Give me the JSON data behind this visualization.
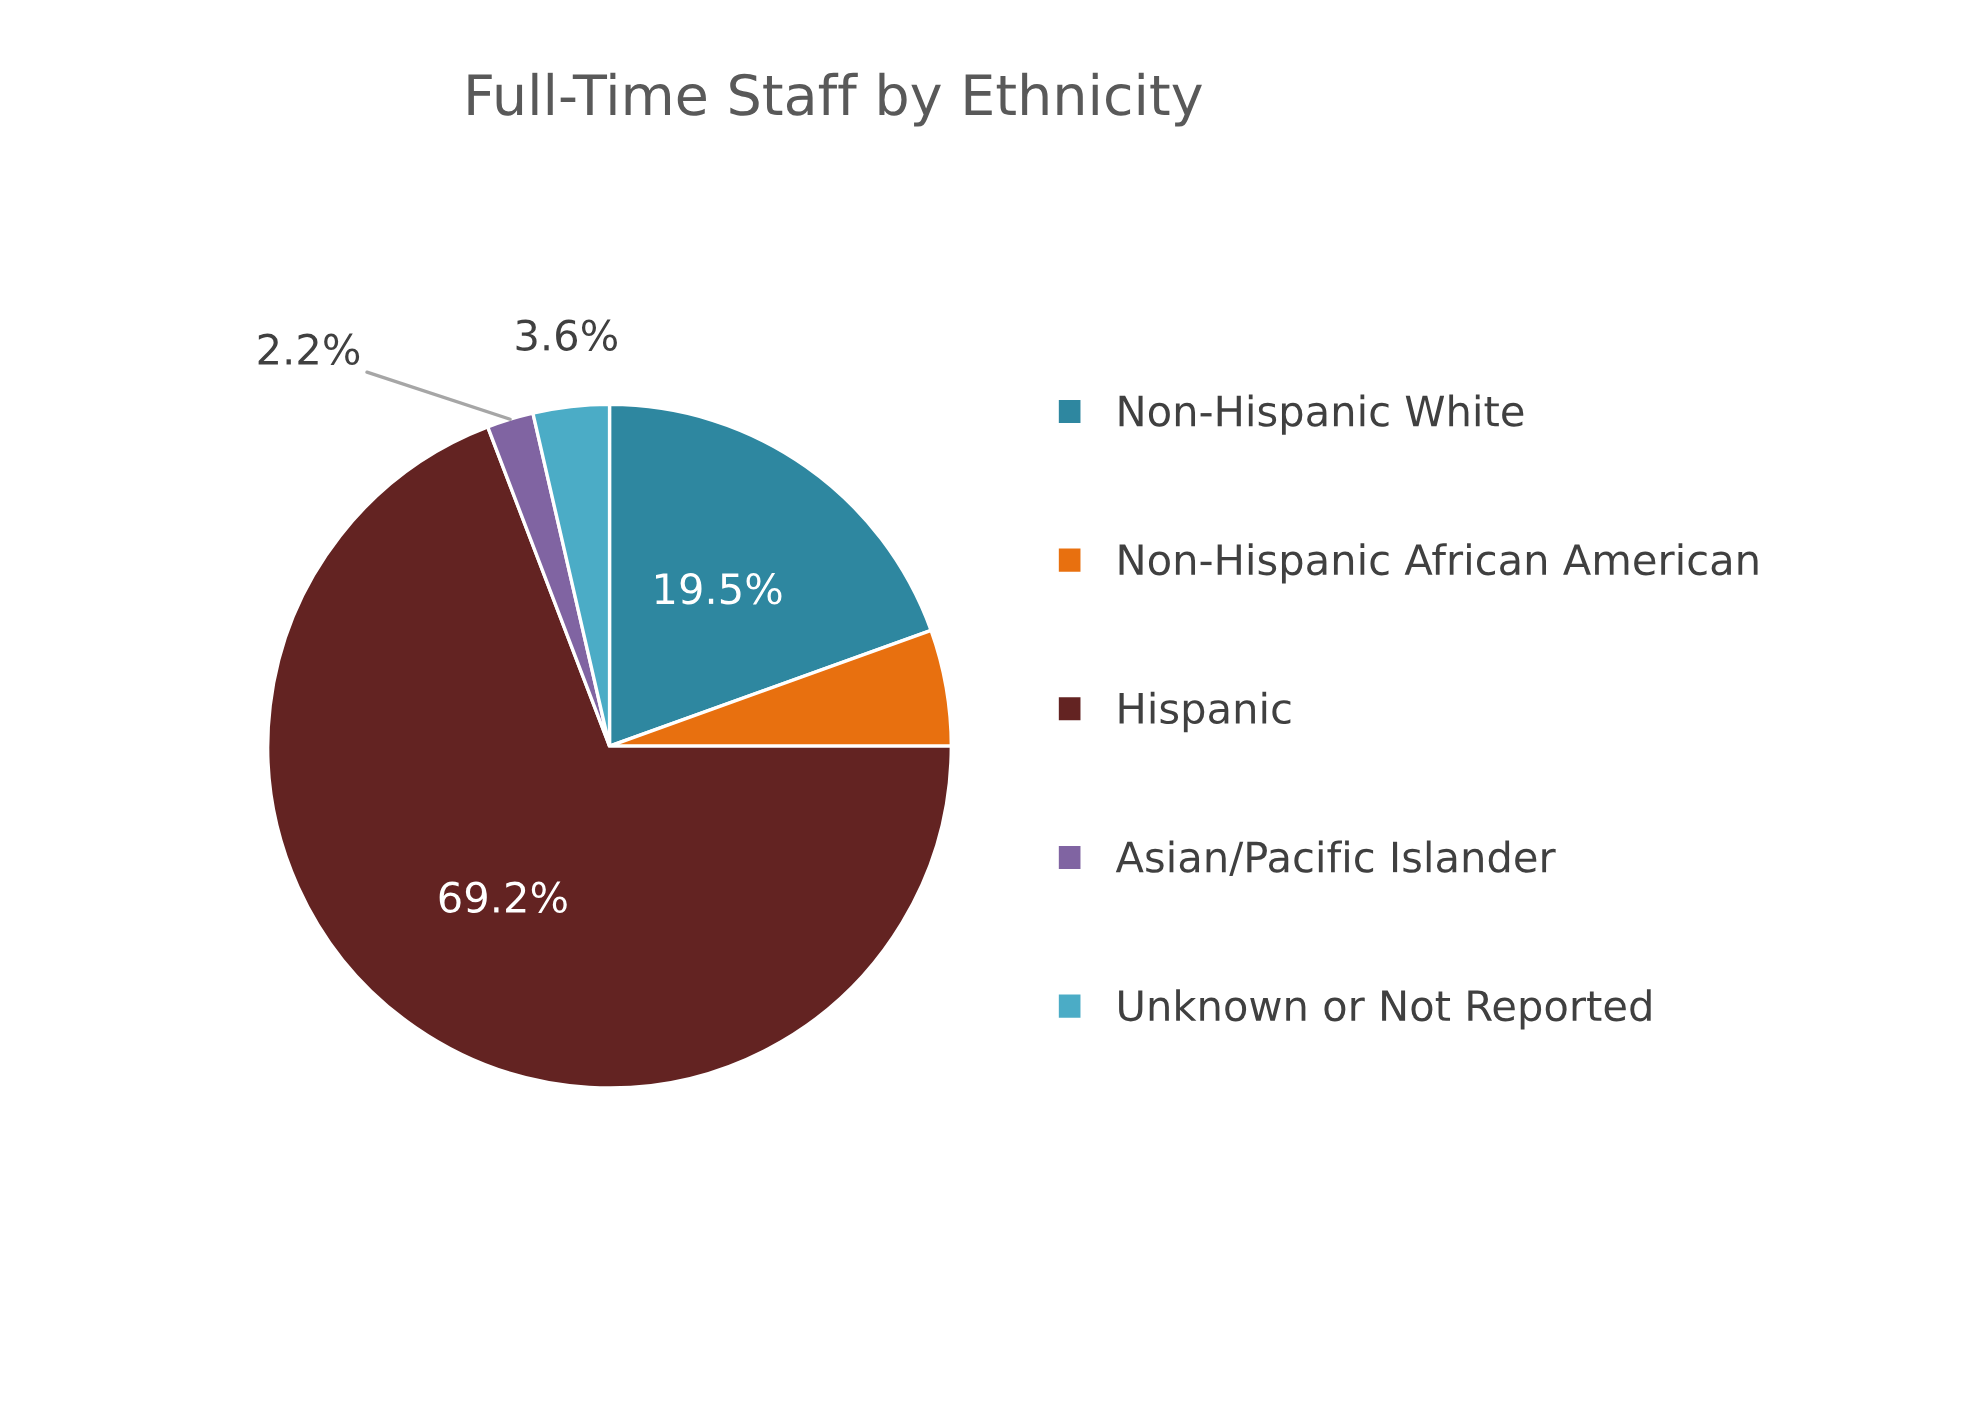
{
  "chart_data": {
    "type": "pie",
    "title": "Full-Time Staff by Ethnicity",
    "categories": [
      "Non-Hispanic White",
      "Non-Hispanic African American",
      "Hispanic",
      "Asian/Pacific Islander",
      "Unknown or Not Reported"
    ],
    "values": [
      19.5,
      5.5,
      69.2,
      2.2,
      3.6
    ],
    "colors": [
      "#2e87a0",
      "#e8700f",
      "#632322",
      "#8064a2",
      "#4bacc6"
    ],
    "value_labels": [
      "19.5%",
      null,
      "69.2%",
      "2.2%",
      "3.6%"
    ],
    "legend": "right"
  }
}
